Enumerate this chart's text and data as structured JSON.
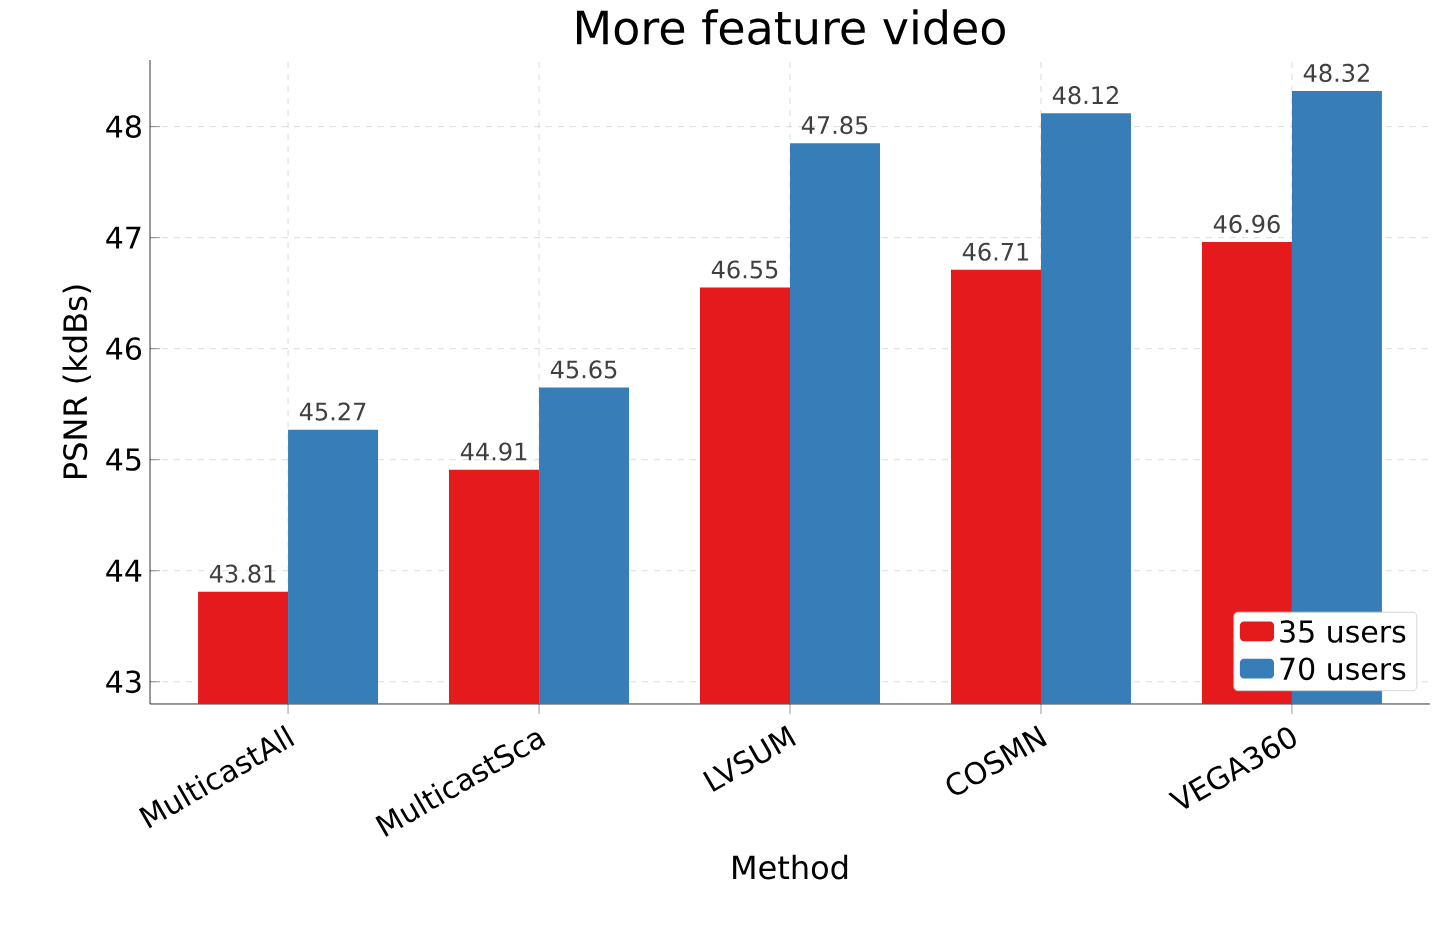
{
  "chart_data": {
    "type": "bar",
    "title": "More feature video",
    "xlabel": "Method",
    "ylabel": "PSNR (kdBs)",
    "categories": [
      "MulticastAll",
      "MulticastSca",
      "LVSUM",
      "COSMN",
      "VEGA360"
    ],
    "series": [
      {
        "name": "35 users",
        "color": "#e41a1c",
        "values": [
          43.81,
          44.91,
          46.55,
          46.71,
          46.96
        ]
      },
      {
        "name": "70 users",
        "color": "#377eb8",
        "values": [
          45.27,
          45.65,
          47.85,
          48.12,
          48.32
        ]
      }
    ],
    "ylim": [
      42.8,
      48.6
    ],
    "yticks": [
      43,
      44,
      45,
      46,
      47,
      48
    ],
    "grid": true,
    "legend": "bottom right",
    "data_labels": true
  }
}
